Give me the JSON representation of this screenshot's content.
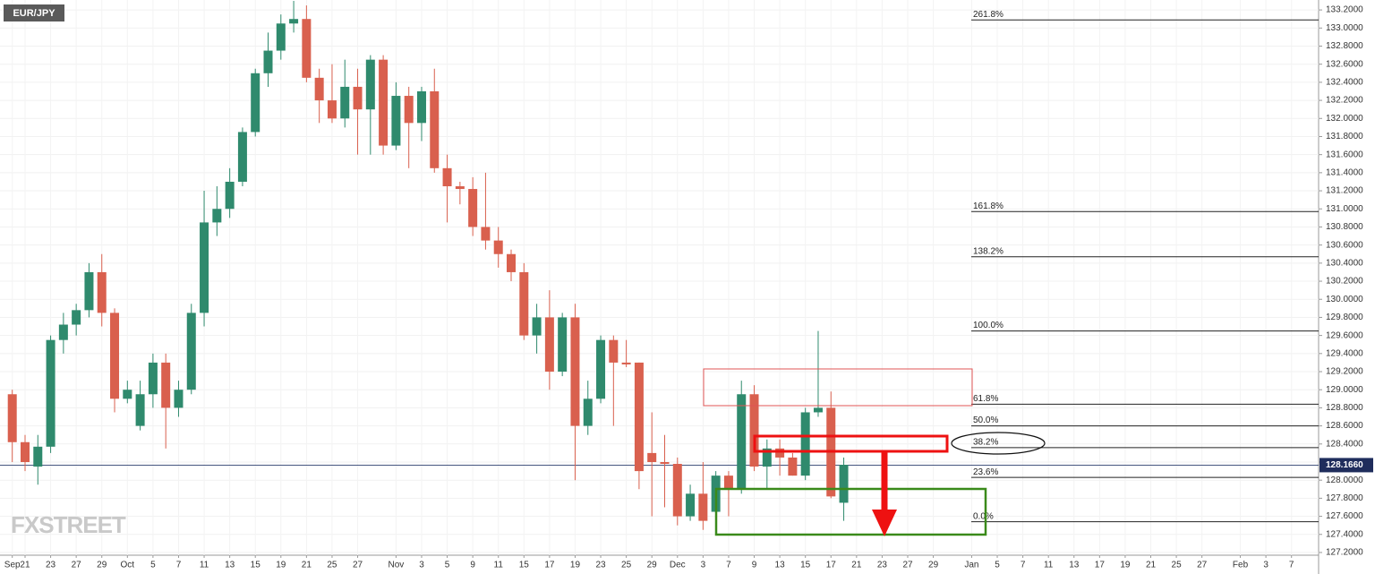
{
  "chart_data": {
    "type": "candlestick",
    "title": "EUR/JPY",
    "watermark": "FXSTREET",
    "up_color": "#2f8a6d",
    "down_color": "#d9604e",
    "categories": [
      "Sep",
      "21",
      null,
      "23",
      null,
      "27",
      null,
      "29",
      null,
      "Oct",
      null,
      "5",
      null,
      "7",
      null,
      "11",
      null,
      "13",
      null,
      "15",
      null,
      "19",
      null,
      "21",
      null,
      "25",
      null,
      "27",
      null,
      null,
      "Nov",
      null,
      "3",
      null,
      "5",
      null,
      "9",
      null,
      "11",
      null,
      "15",
      null,
      "17",
      null,
      "19",
      null,
      "23",
      null,
      "25",
      null,
      "29",
      null,
      "Dec",
      null,
      "3",
      null,
      "7",
      null,
      "9",
      null,
      "13",
      null,
      "15",
      null,
      "17",
      null,
      "21",
      null,
      "23",
      null,
      "27",
      null,
      "29",
      null,
      null,
      "Jan",
      null,
      "5",
      null,
      "7",
      null,
      "11",
      null,
      "13",
      null,
      "17",
      null,
      "19",
      null,
      "21",
      null,
      "25",
      null,
      "27",
      null,
      null,
      "Feb",
      null,
      "3",
      null,
      "7",
      null,
      null
    ],
    "open": [
      128.95,
      128.42,
      128.15,
      128.37,
      129.55,
      129.72,
      129.88,
      130.3,
      129.85,
      128.9,
      128.6,
      128.95,
      129.3,
      128.8,
      129.0,
      129.85,
      130.85,
      131.0,
      131.3,
      131.85,
      132.5,
      132.75,
      133.05,
      133.1,
      132.45,
      132.2,
      132.0,
      132.35,
      132.1,
      132.65,
      131.7,
      132.25,
      131.95,
      132.3,
      131.45,
      131.25,
      131.22,
      130.8,
      130.65,
      130.5,
      130.3,
      129.6,
      129.8,
      129.2,
      129.8,
      128.6,
      128.9,
      129.55,
      129.3,
      129.3,
      128.3,
      128.2,
      128.18,
      127.6,
      127.85,
      127.65,
      128.05,
      127.9,
      128.95,
      128.15,
      128.35,
      128.25,
      128.05,
      128.75,
      128.8,
      127.75,
      null,
      null,
      null,
      null,
      null,
      null,
      null,
      null,
      null,
      null,
      null,
      null,
      null,
      null,
      null,
      null,
      null,
      null,
      null,
      null,
      null,
      null,
      null,
      null,
      null,
      null,
      null,
      null,
      null,
      null,
      null,
      null,
      null,
      null,
      null,
      null,
      null
    ],
    "high": [
      129.0,
      128.5,
      128.5,
      129.6,
      129.85,
      129.95,
      130.4,
      130.5,
      129.9,
      129.1,
      129.1,
      129.4,
      129.4,
      129.1,
      129.95,
      131.2,
      131.25,
      131.45,
      131.9,
      132.55,
      132.95,
      133.15,
      133.3,
      133.25,
      132.55,
      132.6,
      132.65,
      132.55,
      132.7,
      132.7,
      132.4,
      132.35,
      132.35,
      132.55,
      131.6,
      131.3,
      131.35,
      131.4,
      130.8,
      130.55,
      130.4,
      129.95,
      130.1,
      129.85,
      129.95,
      129.1,
      129.6,
      129.6,
      129.55,
      129.3,
      128.75,
      128.5,
      128.25,
      127.95,
      128.2,
      128.1,
      128.1,
      129.1,
      129.05,
      128.45,
      128.45,
      128.3,
      128.8,
      129.65,
      128.98,
      128.25,
      null,
      null,
      null,
      null,
      null,
      null,
      null,
      null,
      null,
      null,
      null,
      null,
      null,
      null,
      null,
      null,
      null,
      null,
      null,
      null,
      null,
      null,
      null,
      null,
      null,
      null,
      null,
      null,
      null,
      null,
      null,
      null,
      null,
      null,
      null,
      null,
      null
    ],
    "low": [
      128.2,
      128.1,
      127.95,
      128.3,
      129.4,
      129.6,
      129.8,
      129.7,
      128.75,
      128.85,
      128.55,
      128.8,
      128.35,
      128.7,
      128.95,
      129.7,
      130.7,
      130.9,
      131.25,
      131.8,
      132.35,
      132.65,
      132.95,
      132.4,
      131.95,
      131.95,
      131.9,
      131.6,
      131.6,
      131.6,
      131.65,
      131.45,
      131.75,
      131.4,
      130.85,
      131.05,
      130.7,
      130.55,
      130.35,
      130.2,
      129.55,
      129.4,
      129.0,
      129.15,
      128.0,
      128.5,
      128.85,
      128.6,
      129.25,
      127.9,
      127.6,
      127.7,
      127.5,
      127.55,
      127.45,
      127.55,
      127.6,
      127.85,
      128.1,
      127.9,
      128.05,
      128.05,
      128.0,
      128.7,
      127.8,
      127.55,
      null,
      null,
      null,
      null,
      null,
      null,
      null,
      null,
      null,
      null,
      null,
      null,
      null,
      null,
      null,
      null,
      null,
      null,
      null,
      null,
      null,
      null,
      null,
      null,
      null,
      null,
      null,
      null,
      null,
      null,
      null,
      null,
      null,
      null,
      null,
      null,
      null
    ],
    "close": [
      128.42,
      128.2,
      128.37,
      129.55,
      129.72,
      129.88,
      130.3,
      129.85,
      128.9,
      129.0,
      128.95,
      129.3,
      128.8,
      129.0,
      129.85,
      130.85,
      131.0,
      131.3,
      131.85,
      132.5,
      132.75,
      133.05,
      133.1,
      132.45,
      132.2,
      132.0,
      132.35,
      132.1,
      132.65,
      131.7,
      132.25,
      131.95,
      132.3,
      131.45,
      131.25,
      131.22,
      130.8,
      130.65,
      130.5,
      130.3,
      129.6,
      129.8,
      129.2,
      129.8,
      128.6,
      128.9,
      129.55,
      129.3,
      129.28,
      128.1,
      128.2,
      128.18,
      127.6,
      127.85,
      127.55,
      128.05,
      127.9,
      128.95,
      128.15,
      128.35,
      128.25,
      128.05,
      128.75,
      128.8,
      127.82,
      128.17,
      null,
      null,
      null,
      null,
      null,
      null,
      null,
      null,
      null,
      null,
      null,
      null,
      null,
      null,
      null,
      null,
      null,
      null,
      null,
      null,
      null,
      null,
      null,
      null,
      null,
      null,
      null,
      null,
      null,
      null,
      null,
      null,
      null,
      null,
      null,
      null,
      null
    ],
    "ylim": [
      127.17,
      133.31
    ],
    "yticks": [
      {
        "value": 127.2,
        "label": "127.2000"
      },
      {
        "value": 127.4,
        "label": "127.4000"
      },
      {
        "value": 127.6,
        "label": "127.6000"
      },
      {
        "value": 127.8,
        "label": "127.8000"
      },
      {
        "value": 128.0,
        "label": "128.0000"
      },
      {
        "value": 128.2,
        "label": "128.2000"
      },
      {
        "value": 128.4,
        "label": "128.4000"
      },
      {
        "value": 128.6,
        "label": "128.6000"
      },
      {
        "value": 128.8,
        "label": "128.8000"
      },
      {
        "value": 129.0,
        "label": "129.0000"
      },
      {
        "value": 129.2,
        "label": "129.2000"
      },
      {
        "value": 129.4,
        "label": "129.4000"
      },
      {
        "value": 129.6,
        "label": "129.6000"
      },
      {
        "value": 129.8,
        "label": "129.8000"
      },
      {
        "value": 130.0,
        "label": "130.0000"
      },
      {
        "value": 130.2,
        "label": "130.2000"
      },
      {
        "value": 130.4,
        "label": "130.4000"
      },
      {
        "value": 130.6,
        "label": "130.6000"
      },
      {
        "value": 130.8,
        "label": "130.8000"
      },
      {
        "value": 131.0,
        "label": "131.0000"
      },
      {
        "value": 131.2,
        "label": "131.2000"
      },
      {
        "value": 131.4,
        "label": "131.4000"
      },
      {
        "value": 131.6,
        "label": "131.6000"
      },
      {
        "value": 131.8,
        "label": "131.8000"
      },
      {
        "value": 132.0,
        "label": "132.0000"
      },
      {
        "value": 132.2,
        "label": "132.2000"
      },
      {
        "value": 132.4,
        "label": "132.4000"
      },
      {
        "value": 132.6,
        "label": "132.6000"
      },
      {
        "value": 132.8,
        "label": "132.8000"
      },
      {
        "value": 133.0,
        "label": "133.0000"
      },
      {
        "value": 133.2,
        "label": "133.2000"
      }
    ],
    "grid": true,
    "fib_levels": [
      {
        "value": 133.09,
        "label": "261.8%"
      },
      {
        "value": 130.97,
        "label": "161.8%"
      },
      {
        "value": 130.47,
        "label": "138.2%"
      },
      {
        "value": 129.65,
        "label": "100.0%"
      },
      {
        "value": 128.84,
        "label": "61.8%"
      },
      {
        "value": 128.6,
        "label": "50.0%"
      },
      {
        "value": 128.36,
        "label": "38.2%"
      },
      {
        "value": 128.03,
        "label": "23.6%"
      },
      {
        "value": 127.54,
        "label": "0.0%"
      }
    ],
    "last_price": {
      "value": 128.166,
      "label": "128.1660"
    }
  }
}
